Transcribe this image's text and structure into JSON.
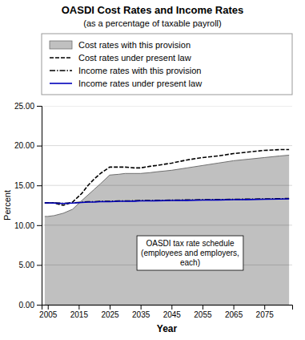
{
  "chart_data": {
    "type": "line",
    "title": "OASDI Cost Rates and Income Rates",
    "subtitle": "(as a percentage of taxable payroll)",
    "xlabel": "Year",
    "ylabel": "Percent",
    "x": [
      2004,
      2005,
      2007,
      2010,
      2013,
      2016,
      2018,
      2020,
      2022,
      2025,
      2028,
      2030,
      2033,
      2035,
      2038,
      2040,
      2045,
      2050,
      2055,
      2060,
      2065,
      2070,
      2075,
      2080,
      2083
    ],
    "xlim": [
      2003,
      2084
    ],
    "xticks": [
      2005,
      2015,
      2025,
      2035,
      2045,
      2055,
      2065,
      2075
    ],
    "ylim": [
      0.0,
      25.0
    ],
    "yticks": [
      {
        "value": 0.0,
        "label": "0.00"
      },
      {
        "value": 5.0,
        "label": "5.00"
      },
      {
        "value": 10.0,
        "label": "10.00"
      },
      {
        "value": 15.0,
        "label": "15.00"
      },
      {
        "value": 20.0,
        "label": "20.00"
      },
      {
        "value": 25.0,
        "label": "25.00"
      }
    ],
    "grid": "y",
    "legend": "top",
    "series": [
      {
        "name": "Cost rates with this provision",
        "type": "area",
        "color": "#c0c0c0",
        "line_style": "solid",
        "values": [
          11.1,
          11.1,
          11.2,
          11.5,
          12.0,
          13.1,
          13.8,
          14.5,
          15.2,
          16.3,
          16.4,
          16.5,
          16.5,
          16.5,
          16.6,
          16.7,
          16.9,
          17.2,
          17.5,
          17.8,
          18.1,
          18.3,
          18.5,
          18.7,
          18.8
        ]
      },
      {
        "name": "Cost rates under present law",
        "type": "line",
        "color": "#000000",
        "line_style": "dashed",
        "values": [
          12.8,
          12.8,
          12.8,
          12.5,
          12.9,
          14.0,
          15.0,
          15.8,
          16.5,
          17.3,
          17.3,
          17.3,
          17.2,
          17.2,
          17.4,
          17.5,
          17.8,
          18.2,
          18.5,
          18.7,
          19.0,
          19.2,
          19.4,
          19.5,
          19.5
        ]
      },
      {
        "name": "Income rates with this provision",
        "type": "line",
        "color": "#000000",
        "line_style": "dashdot",
        "values": [
          12.8,
          12.8,
          12.8,
          12.75,
          12.8,
          12.9,
          12.95,
          12.95,
          13.0,
          13.0,
          13.05,
          13.05,
          13.07,
          13.1,
          13.1,
          13.12,
          13.15,
          13.17,
          13.2,
          13.22,
          13.25,
          13.28,
          13.3,
          13.33,
          13.35
        ]
      },
      {
        "name": "Income rates under present law",
        "type": "line",
        "color": "#0000bb",
        "line_style": "solid",
        "values": [
          12.8,
          12.8,
          12.78,
          12.72,
          12.78,
          12.85,
          12.9,
          12.9,
          12.95,
          12.95,
          13.0,
          13.0,
          13.02,
          13.05,
          13.05,
          13.07,
          13.1,
          13.12,
          13.15,
          13.17,
          13.2,
          13.22,
          13.25,
          13.28,
          13.3
        ]
      }
    ],
    "annotations": [
      {
        "text": "OASDI tax rate schedule\n(employees and employers,\neach)",
        "x": 2051,
        "y": 6.5
      }
    ]
  }
}
